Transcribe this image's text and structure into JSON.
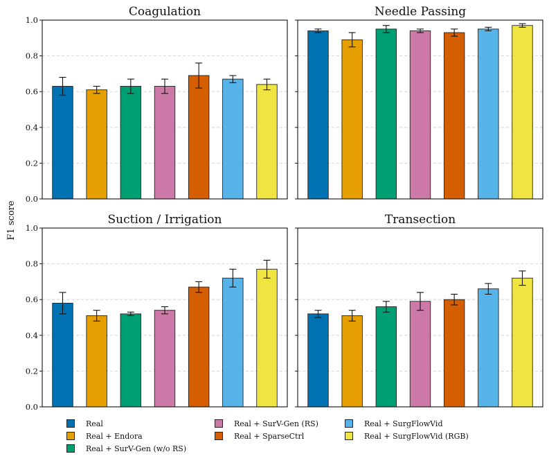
{
  "figure": {
    "ylabel": "F1 score"
  },
  "colors": [
    "#0072b2",
    "#e69f00",
    "#009e73",
    "#cc79a7",
    "#d55e00",
    "#56b4e9",
    "#f0e442"
  ],
  "legend": {
    "items": [
      "Real",
      "Real + Endora",
      "Real + SurV-Gen (w/o RS)",
      "Real + SurV-Gen (RS)",
      "Real + SparseCtrl",
      "Real + SurgFlowVid",
      "Real + SurgFlowVid (RGB)"
    ]
  },
  "chart_data": [
    {
      "type": "bar",
      "title": "Coagulation",
      "categories": [
        "Real",
        "Real + Endora",
        "Real + SurV-Gen (w/o RS)",
        "Real + SurV-Gen (RS)",
        "Real + SparseCtrl",
        "Real + SurgFlowVid",
        "Real + SurgFlowVid (RGB)"
      ],
      "values": [
        0.63,
        0.61,
        0.63,
        0.63,
        0.69,
        0.67,
        0.64
      ],
      "errors": [
        0.05,
        0.02,
        0.04,
        0.04,
        0.07,
        0.02,
        0.03
      ],
      "ylim": [
        0,
        1.0
      ],
      "yticks": [
        "0.0",
        "0.2",
        "0.4",
        "0.6",
        "0.8",
        "1.0"
      ],
      "grid": true
    },
    {
      "type": "bar",
      "title": "Needle Passing",
      "categories": [
        "Real",
        "Real + Endora",
        "Real + SurV-Gen (w/o RS)",
        "Real + SurV-Gen (RS)",
        "Real + SparseCtrl",
        "Real + SurgFlowVid",
        "Real + SurgFlowVid (RGB)"
      ],
      "values": [
        0.94,
        0.89,
        0.95,
        0.94,
        0.93,
        0.95,
        0.97
      ],
      "errors": [
        0.01,
        0.04,
        0.02,
        0.01,
        0.02,
        0.01,
        0.01
      ],
      "ylim": [
        0,
        1.0
      ],
      "yticks": [],
      "grid": true
    },
    {
      "type": "bar",
      "title": "Suction / Irrigation",
      "categories": [
        "Real",
        "Real + Endora",
        "Real + SurV-Gen (w/o RS)",
        "Real + SurV-Gen (RS)",
        "Real + SparseCtrl",
        "Real + SurgFlowVid",
        "Real + SurgFlowVid (RGB)"
      ],
      "values": [
        0.58,
        0.51,
        0.52,
        0.54,
        0.67,
        0.72,
        0.77
      ],
      "errors": [
        0.06,
        0.03,
        0.01,
        0.02,
        0.03,
        0.05,
        0.05
      ],
      "ylim": [
        0,
        1.0
      ],
      "yticks": [
        "0.0",
        "0.2",
        "0.4",
        "0.6",
        "0.8",
        "1.0"
      ],
      "grid": true
    },
    {
      "type": "bar",
      "title": "Transection",
      "categories": [
        "Real",
        "Real + Endora",
        "Real + SurV-Gen (w/o RS)",
        "Real + SurV-Gen (RS)",
        "Real + SparseCtrl",
        "Real + SurgFlowVid",
        "Real + SurgFlowVid (RGB)"
      ],
      "values": [
        0.52,
        0.51,
        0.56,
        0.59,
        0.6,
        0.66,
        0.72
      ],
      "errors": [
        0.02,
        0.03,
        0.03,
        0.05,
        0.03,
        0.03,
        0.04
      ],
      "ylim": [
        0,
        1.0
      ],
      "yticks": [],
      "grid": true
    }
  ]
}
